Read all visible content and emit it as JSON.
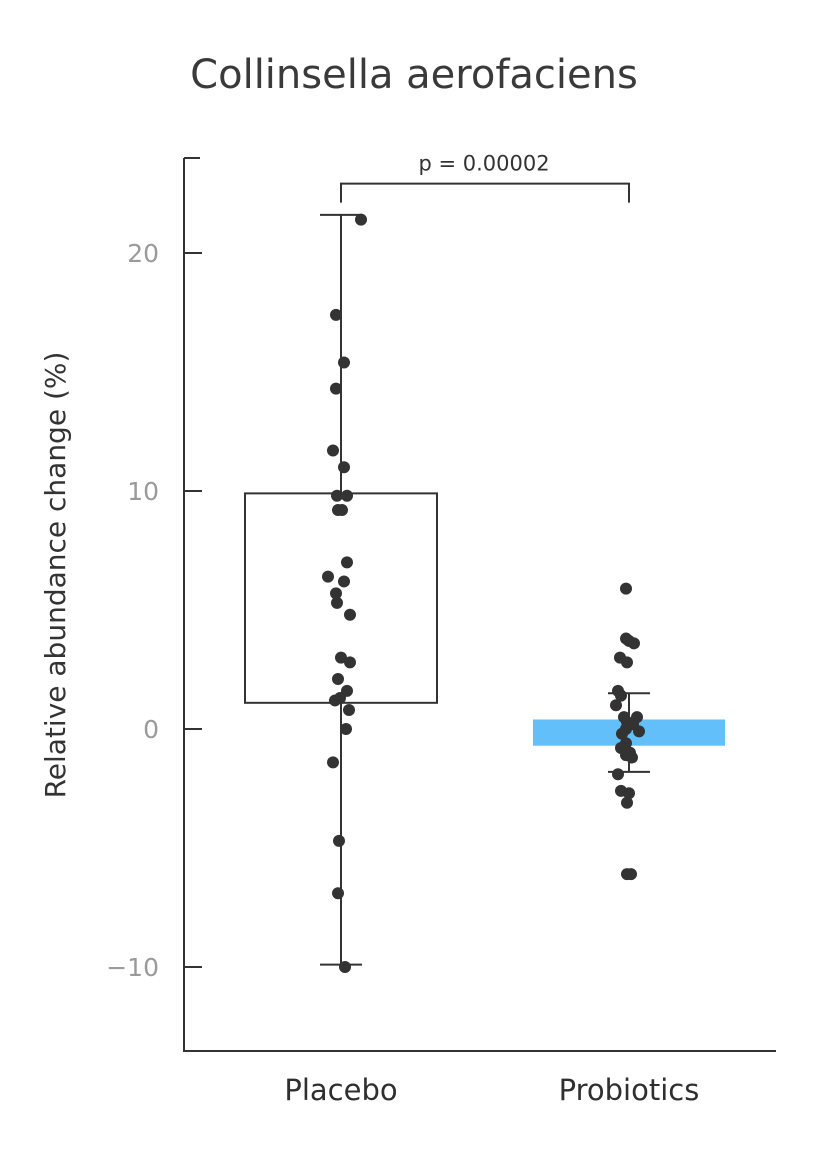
{
  "chart_data": {
    "type": "box",
    "title": "Collinsella aerofaciens",
    "ylabel": "Relative abundance change (%)",
    "xlabel": "",
    "ylim": [
      -13.3,
      24
    ],
    "yticks": [
      -10,
      0,
      10,
      20
    ],
    "ytick_labels": [
      "−10",
      "0",
      "10",
      "20"
    ],
    "categories": [
      "Placebo",
      "Probiotics"
    ],
    "annotation": {
      "text": "p = 0.00002",
      "between": [
        "Placebo",
        "Probiotics"
      ],
      "y": 23
    },
    "colors": {
      "Placebo": "#ffffff",
      "Probiotics": "#62bffa",
      "points": "#333333",
      "axis": "#333333"
    },
    "groups": [
      {
        "category": "Placebo",
        "box": {
          "q1": 1.1,
          "q3": 9.9,
          "whisker_low": -9.9,
          "whisker_high": 21.6
        },
        "points": [
          [
            0.2,
            21.4
          ],
          [
            -0.05,
            17.4
          ],
          [
            0.03,
            15.4
          ],
          [
            -0.05,
            14.3
          ],
          [
            -0.08,
            11.7
          ],
          [
            0.03,
            11.0
          ],
          [
            -0.04,
            9.8
          ],
          [
            0.06,
            9.8
          ],
          [
            -0.03,
            9.2
          ],
          [
            0.01,
            9.2
          ],
          [
            0.06,
            7.0
          ],
          [
            -0.13,
            6.4
          ],
          [
            0.03,
            6.2
          ],
          [
            -0.05,
            5.7
          ],
          [
            -0.04,
            5.3
          ],
          [
            0.09,
            4.8
          ],
          [
            0.0,
            3.0
          ],
          [
            0.09,
            2.8
          ],
          [
            -0.03,
            2.1
          ],
          [
            0.06,
            1.6
          ],
          [
            -0.01,
            1.3
          ],
          [
            -0.06,
            1.2
          ],
          [
            0.08,
            0.8
          ],
          [
            0.05,
            0.0
          ],
          [
            -0.08,
            -1.4
          ],
          [
            -0.02,
            -4.7
          ],
          [
            -0.03,
            -6.9
          ],
          [
            0.04,
            -10.0
          ]
        ]
      },
      {
        "category": "Probiotics",
        "box": {
          "q1": -0.7,
          "q3": 0.4,
          "whisker_low": -1.8,
          "whisker_high": 1.5
        },
        "points": [
          [
            -0.03,
            5.9
          ],
          [
            -0.03,
            3.8
          ],
          [
            0.0,
            3.7
          ],
          [
            0.05,
            3.6
          ],
          [
            -0.09,
            3.0
          ],
          [
            -0.02,
            2.8
          ],
          [
            -0.11,
            1.6
          ],
          [
            -0.08,
            1.4
          ],
          [
            -0.13,
            1.0
          ],
          [
            -0.05,
            0.5
          ],
          [
            0.08,
            0.5
          ],
          [
            -0.02,
            0.3
          ],
          [
            0.01,
            0.2
          ],
          [
            0.04,
            0.2
          ],
          [
            -0.03,
            0.0
          ],
          [
            0.1,
            -0.1
          ],
          [
            -0.07,
            -0.2
          ],
          [
            -0.03,
            -0.6
          ],
          [
            -0.08,
            -0.8
          ],
          [
            0.01,
            -1.0
          ],
          [
            -0.03,
            -1.1
          ],
          [
            0.03,
            -1.2
          ],
          [
            -0.11,
            -1.9
          ],
          [
            -0.08,
            -2.6
          ],
          [
            0.0,
            -2.7
          ],
          [
            -0.02,
            -3.1
          ],
          [
            -0.02,
            -6.1
          ],
          [
            0.02,
            -6.1
          ]
        ]
      }
    ]
  }
}
